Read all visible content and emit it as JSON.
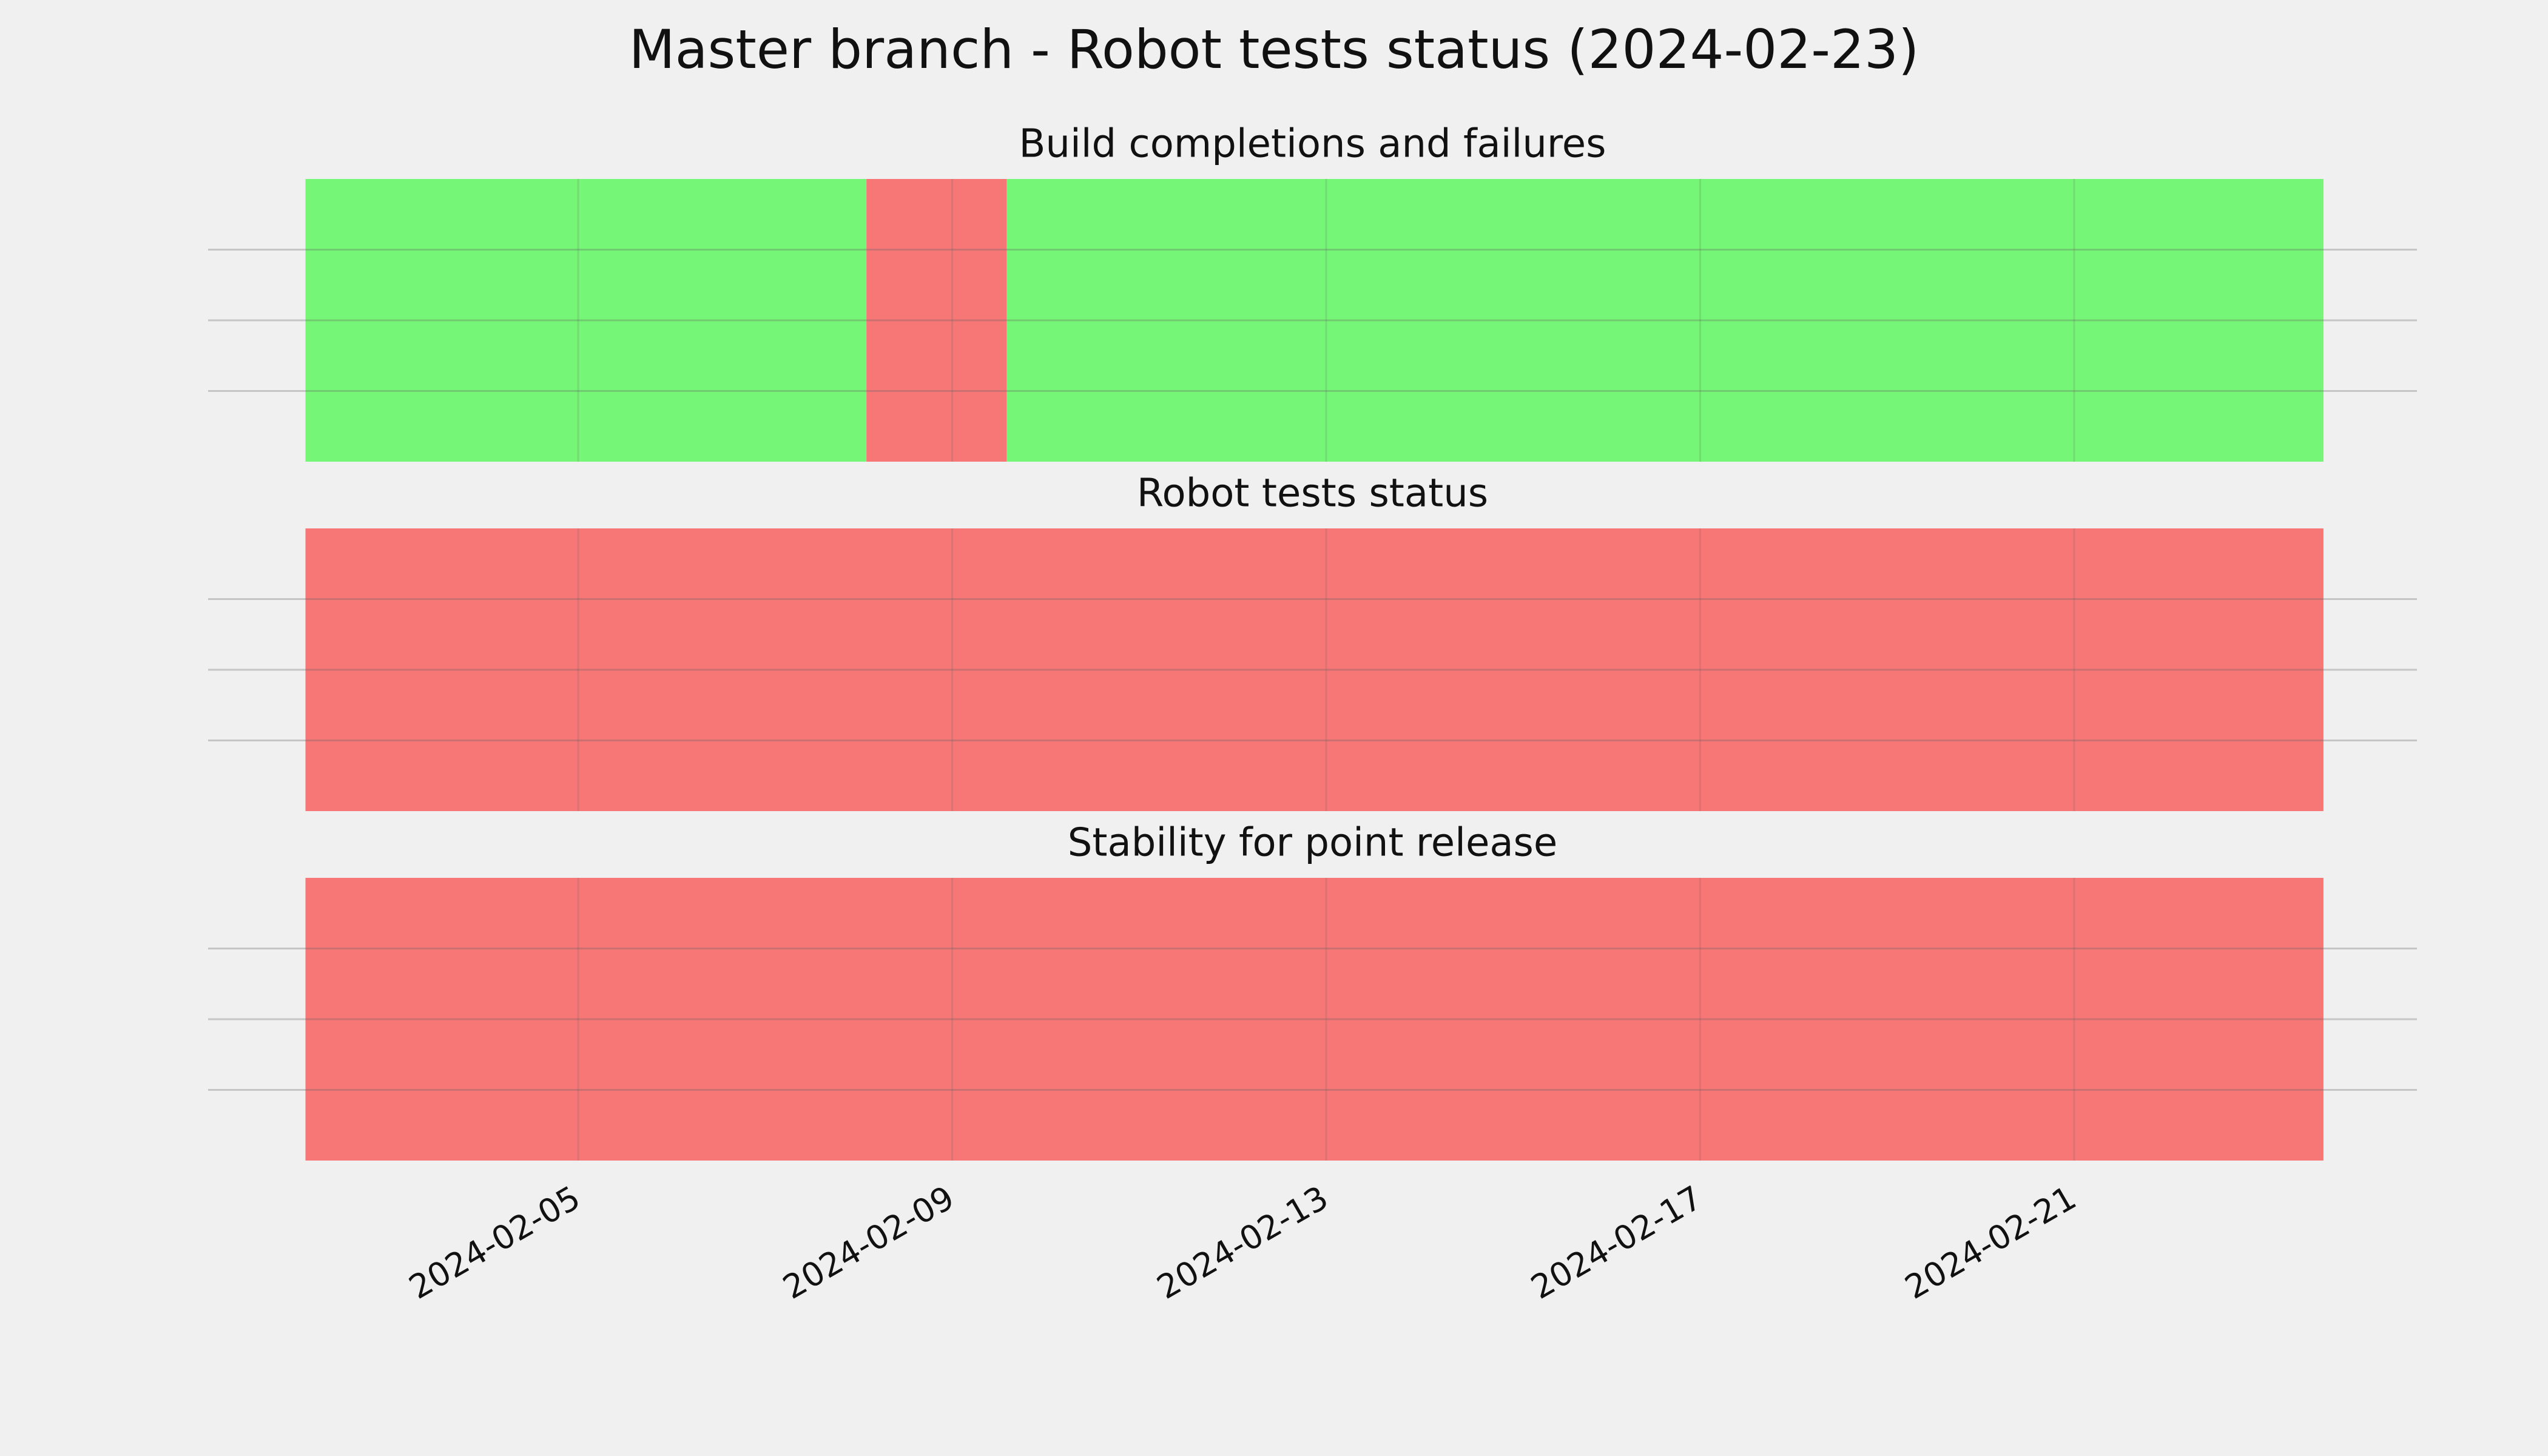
{
  "title": "Master branch - Robot tests status (2024-02-23)",
  "chart_data": [
    {
      "type": "timeline",
      "title": "Build completions and failures",
      "segments": [
        {
          "start": "2024-02-02T02:00",
          "end": "2024-02-08T02:00",
          "color": "#76f676"
        },
        {
          "start": "2024-02-08T02:00",
          "end": "2024-02-09T14:00",
          "color": "#f77676"
        },
        {
          "start": "2024-02-09T14:00",
          "end": "2024-02-23T16:00",
          "color": "#76f676"
        }
      ],
      "xlim": [
        "2024-02-01T01:00",
        "2024-02-24T16:00"
      ],
      "xticks": [
        "2024-02-05",
        "2024-02-09",
        "2024-02-13",
        "2024-02-17",
        "2024-02-21"
      ],
      "ylim": [
        0,
        1
      ],
      "yticks": [
        0.25,
        0.5,
        0.75
      ],
      "grid": true
    },
    {
      "type": "timeline",
      "title": "Robot tests status",
      "segments": [
        {
          "start": "2024-02-02T02:00",
          "end": "2024-02-23T16:00",
          "color": "#f77676"
        }
      ],
      "xlim": [
        "2024-02-01T01:00",
        "2024-02-24T16:00"
      ],
      "xticks": [
        "2024-02-05",
        "2024-02-09",
        "2024-02-13",
        "2024-02-17",
        "2024-02-21"
      ],
      "ylim": [
        0,
        1
      ],
      "yticks": [
        0.25,
        0.5,
        0.75
      ],
      "grid": true
    },
    {
      "type": "timeline",
      "title": "Stability for point release",
      "segments": [
        {
          "start": "2024-02-02T02:00",
          "end": "2024-02-23T16:00",
          "color": "#f77676"
        }
      ],
      "xlim": [
        "2024-02-01T01:00",
        "2024-02-24T16:00"
      ],
      "xticks": [
        "2024-02-05",
        "2024-02-09",
        "2024-02-13",
        "2024-02-17",
        "2024-02-21"
      ],
      "ylim": [
        0,
        1
      ],
      "yticks": [
        0.25,
        0.5,
        0.75
      ],
      "grid": true
    }
  ]
}
